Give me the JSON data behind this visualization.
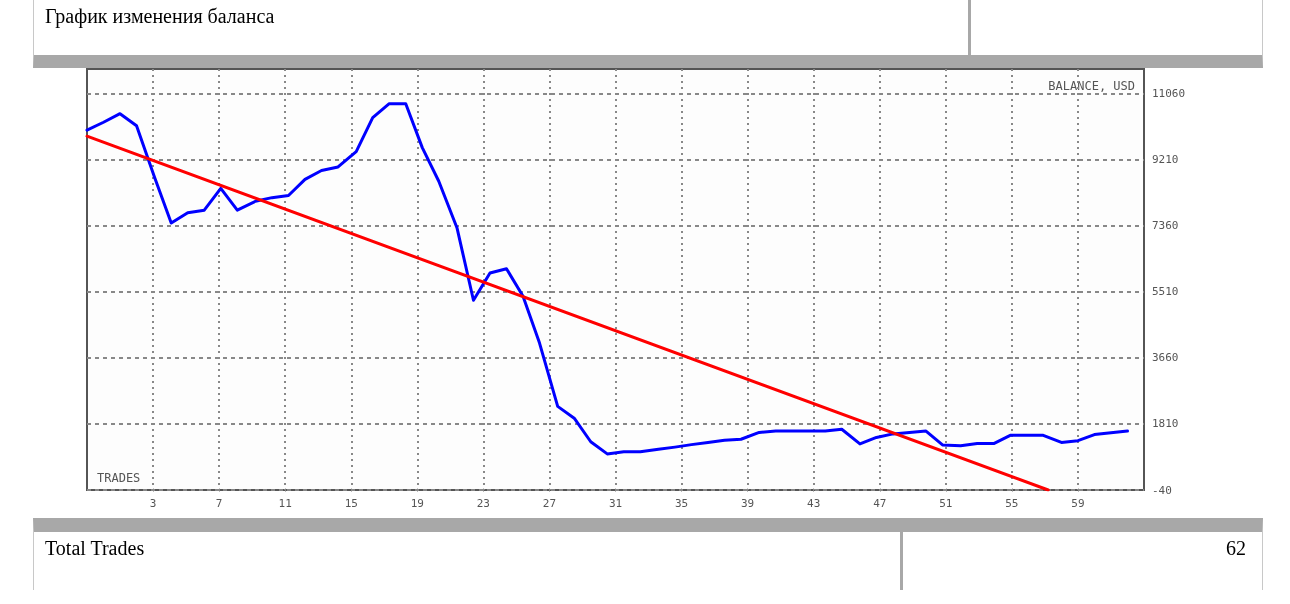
{
  "chart_data": {
    "type": "line",
    "title": "График изменения баланса",
    "xlabel": "TRADES",
    "ylabel": "BALANCE, USD",
    "annotations": [
      "Total Trades",
      "62"
    ],
    "series": [
      {
        "color": "#0000ff",
        "x": [
          -1,
          0,
          1,
          2,
          3.1,
          4.1,
          5.1,
          6.1,
          7.1,
          8.1,
          9.2,
          10.2,
          11.2,
          12.2,
          13.2,
          14.2,
          15.3,
          16.3,
          17.3,
          18.3,
          19.3,
          20.3,
          21.4,
          22.4,
          23.4,
          24.4,
          25.4,
          26.4,
          27.5,
          28.5,
          29.5,
          30.5,
          31.5,
          32.5,
          33.6,
          34.6,
          35.6,
          36.6,
          37.6,
          38.6,
          39.7,
          40.7,
          41.7,
          42.7,
          43.7,
          44.7,
          45.8,
          46.8,
          47.8,
          48.8,
          49.8,
          50.8,
          51.9,
          52.9,
          53.9,
          54.9,
          55.9,
          56.9,
          58,
          59,
          60,
          61,
          62
        ],
        "values": [
          10030,
          10250,
          10490,
          10150,
          8700,
          7430,
          7720,
          7790,
          8400,
          7790,
          8040,
          8140,
          8200,
          8650,
          8900,
          9000,
          9430,
          10380,
          10770,
          10770,
          9540,
          8600,
          7300,
          5270,
          6030,
          6150,
          5380,
          4070,
          2300,
          1970,
          1310,
          970,
          1030,
          1030,
          1100,
          1160,
          1230,
          1290,
          1350,
          1380,
          1570,
          1610,
          1610,
          1610,
          1610,
          1660,
          1250,
          1430,
          1530,
          1570,
          1610,
          1220,
          1200,
          1260,
          1260,
          1490,
          1490,
          1490,
          1290,
          1340,
          1510,
          1560,
          1610
        ]
      },
      {
        "color": "#ff0000",
        "x": [
          -1,
          57.2
        ],
        "values": [
          9860,
          -40
        ]
      }
    ],
    "xlim": [
      -1,
      63
    ],
    "xticks": [
      3,
      7,
      11,
      15,
      19,
      23,
      27,
      31,
      35,
      39,
      43,
      47,
      51,
      55,
      59
    ],
    "ylim": [
      -40,
      11740
    ],
    "yticks": [
      -40,
      1810,
      3660,
      5510,
      7360,
      9210,
      11060
    ],
    "grid": true,
    "marker": "none",
    "line_style": "solid"
  }
}
